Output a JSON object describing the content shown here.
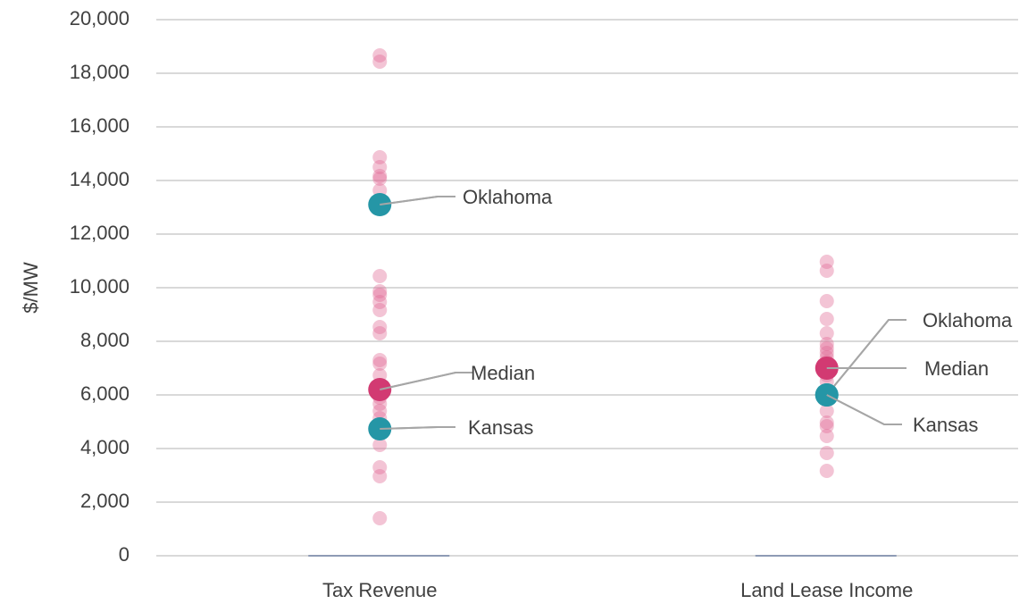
{
  "chart_data": {
    "type": "strip",
    "ylabel": "$/MW",
    "categories": [
      "Tax Revenue",
      "Land Lease Income"
    ],
    "values": [
      [
        18667,
        18433,
        14867,
        14500,
        14167,
        14067,
        13633,
        10433,
        9867,
        9733,
        9467,
        9167,
        8533,
        8300,
        7300,
        7167,
        6733,
        5900,
        5667,
        5400,
        5133,
        4900,
        4633,
        4133,
        3300,
        2967,
        1400
      ],
      [
        10967,
        10633,
        9500,
        8833,
        8300,
        7900,
        7733,
        7567,
        7400,
        7233,
        7067,
        6733,
        6500,
        5400,
        4967,
        4833,
        4467,
        3833,
        3167
      ]
    ],
    "color": "#e06c97",
    "annotations": [
      {
        "label": "Oklahoma",
        "values": [
          13100,
          6000
        ],
        "color": "#2596a6"
      },
      {
        "label": "Median",
        "values": [
          6200,
          7000
        ],
        "color": "#d23a72"
      },
      {
        "label": "Kansas",
        "values": [
          4733,
          6000
        ],
        "color": "#2596a6"
      }
    ],
    "ylim": [
      0,
      20000
    ],
    "yticks": [
      0,
      {
        "value": 2000,
        "label": "2,000"
      },
      {
        "value": 4000,
        "label": "4,000"
      },
      {
        "value": 6000,
        "label": "6,000"
      },
      {
        "value": 8000,
        "label": "8,000"
      },
      {
        "value": 10000,
        "label": "10,000"
      },
      {
        "value": 12000,
        "label": "12,000"
      },
      {
        "value": 14000,
        "label": "14,000"
      },
      {
        "value": 16000,
        "label": "16,000"
      },
      {
        "value": 18000,
        "label": "18,000"
      },
      {
        "value": 20000,
        "label": "20,000"
      }
    ],
    "grid": true
  }
}
